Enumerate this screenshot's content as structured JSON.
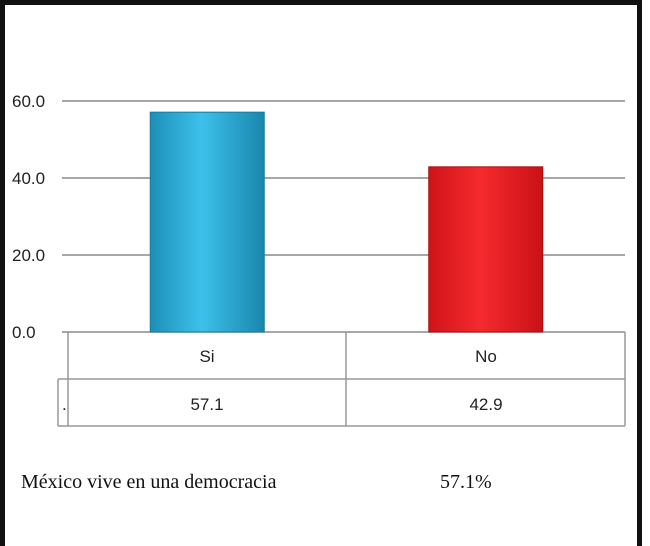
{
  "chart_data": {
    "type": "bar",
    "categories": [
      "Si",
      "No"
    ],
    "values": [
      57.1,
      42.9
    ],
    "yticks": [
      "0.0",
      "20.0",
      "40.0",
      "60.0"
    ],
    "ylim": [
      0,
      60
    ],
    "grid": true,
    "table_marker": ".",
    "table_values": [
      "57.1",
      "42.9"
    ],
    "colors": [
      "#2fb1dc",
      "#ee2327"
    ]
  },
  "caption": {
    "label": "México vive en una democracia",
    "value": "57.1%"
  }
}
